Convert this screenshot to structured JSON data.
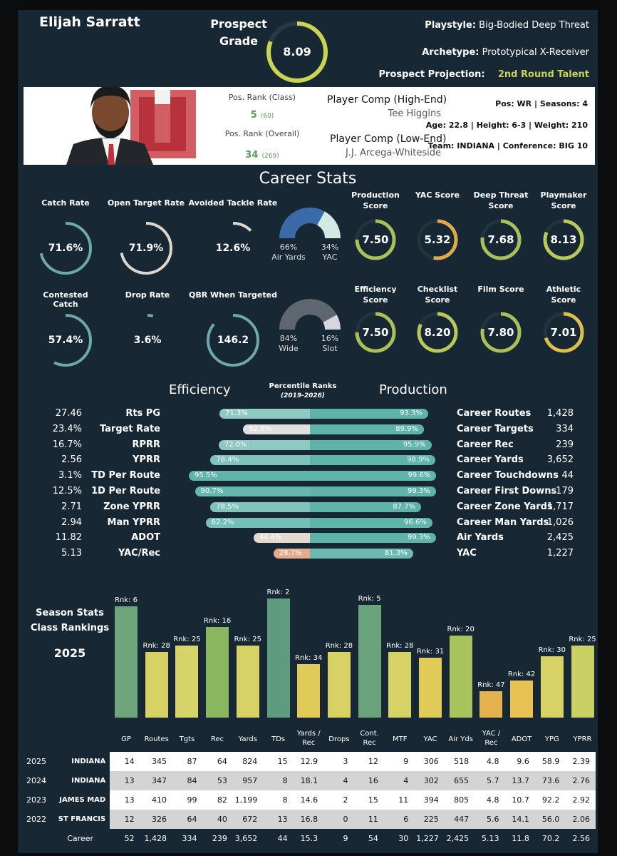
{
  "header": {
    "player_name": "Elijah Sarratt",
    "prospect_grade_label": "Prospect Grade",
    "prospect_grade": "8.09",
    "prospect_grade_value": 8.09,
    "playstyle_label": "Playstyle:",
    "playstyle": "Big-Bodied Deep Threat",
    "archetype_label": "Archetype:",
    "archetype": "Prototypical X-Receiver",
    "projection_label": "Prospect Projection:",
    "projection": "2nd Round Talent"
  },
  "profile": {
    "pos_rank_class_label": "Pos. Rank (Class)",
    "pos_rank_class": "5",
    "pos_rank_class_total": "(60)",
    "pos_rank_overall_label": "Pos. Rank (Overall)",
    "pos_rank_overall": "34",
    "pos_rank_overall_total": "(269)",
    "comp_high_label": "Player Comp (High-End)",
    "comp_high": "Tee Higgins",
    "comp_low_label": "Player Comp (Low-End)",
    "comp_low": "J.J. Arcega-Whiteside",
    "pos_line": "Pos: WR | Seasons: 4",
    "bio_line": "Age: 22.8 | Height: 6-3 | Weight: 210",
    "team_line": "Team: INDIANA | Conference: BIG 10",
    "logo_letter": "IU"
  },
  "career_stats": {
    "title": "Career Stats",
    "rate_stats": [
      {
        "label": "Catch Rate",
        "value": "71.6%",
        "fill": 0.716,
        "color": "#6fa8a8"
      },
      {
        "label": "Open Target Rate",
        "value": "71.9%",
        "fill": 0.719,
        "color": "#dcd6cc"
      },
      {
        "label": "Avoided Tackle Rate",
        "value": "12.6%",
        "fill": 0.126,
        "color": "#dcd6cc"
      },
      {
        "label": "Contested Catch",
        "value": "57.4%",
        "fill": 0.574,
        "color": "#6fa8a8"
      },
      {
        "label": "Drop Rate",
        "value": "3.6%",
        "fill": 0.036,
        "color": "#6fa8a8"
      },
      {
        "label": "QBR When Targeted",
        "value": "146.2",
        "fill": 0.86,
        "color": "#6fa8a8"
      }
    ],
    "air_split": {
      "left_pct": "66%",
      "left_label": "Air Yards",
      "right_pct": "34%",
      "right_label": "YAC",
      "left_value": 66,
      "left_color": "#3b6aa8",
      "right_color": "#cfe9e3"
    },
    "route_split": {
      "left_pct": "84%",
      "left_label": "Wide",
      "right_pct": "16%",
      "right_label": "Slot",
      "left_value": 84,
      "left_color": "#5e6670",
      "right_color": "#d6d6dc"
    },
    "scores": [
      {
        "label": "Production Score",
        "value": "7.50",
        "score": 7.5,
        "color": "#aabf5a"
      },
      {
        "label": "YAC Score",
        "value": "5.32",
        "score": 5.32,
        "color": "#e2a94a"
      },
      {
        "label": "Deep Threat Score",
        "value": "7.68",
        "score": 7.68,
        "color": "#aabf5a"
      },
      {
        "label": "Playmaker Score",
        "value": "8.13",
        "score": 8.13,
        "color": "#b8c95a"
      },
      {
        "label": "Efficiency Score",
        "value": "7.50",
        "score": 7.5,
        "color": "#aabf5a"
      },
      {
        "label": "Checklist Score",
        "value": "8.20",
        "score": 8.2,
        "color": "#b8c95a"
      },
      {
        "label": "Film Score",
        "value": "7.80",
        "score": 7.8,
        "color": "#aabf5a"
      },
      {
        "label": "Athletic Score",
        "value": "7.01",
        "score": 7.01,
        "color": "#dcc04a"
      }
    ]
  },
  "percentiles": {
    "efficiency_title": "Efficiency",
    "production_title": "Production",
    "title": "Percentile Ranks",
    "subtitle": "(2019-2026)",
    "rows": [
      {
        "eff_value": "27.46",
        "eff_label": "Rts PG",
        "eff_pct": "71.3%",
        "eff_pct_value": 71.3,
        "eff_color": "#8ec9c4",
        "prod_pct": "93.3%",
        "prod_pct_value": 93.3,
        "prod_color": "#5fb4aa",
        "prod_label": "Career Routes",
        "prod_value": "1,428"
      },
      {
        "eff_value": "23.4%",
        "eff_label": "Target Rate",
        "eff_pct": "52.6%",
        "eff_pct_value": 52.6,
        "eff_color": "#e0e0e0",
        "prod_pct": "89.9%",
        "prod_pct_value": 89.9,
        "prod_color": "#5fb4aa",
        "prod_label": "Career Targets",
        "prod_value": "334"
      },
      {
        "eff_value": "16.7%",
        "eff_label": "RPRR",
        "eff_pct": "72.0%",
        "eff_pct_value": 72.0,
        "eff_color": "#8ec9c4",
        "prod_pct": "95.9%",
        "prod_pct_value": 95.9,
        "prod_color": "#5fb4aa",
        "prod_label": "Career Rec",
        "prod_value": "239"
      },
      {
        "eff_value": "2.56",
        "eff_label": "YPRR",
        "eff_pct": "78.4%",
        "eff_pct_value": 78.4,
        "eff_color": "#80c2bc",
        "prod_pct": "98.9%",
        "prod_pct_value": 98.9,
        "prod_color": "#5fb4aa",
        "prod_label": "Career Yards",
        "prod_value": "3,652"
      },
      {
        "eff_value": "3.1%",
        "eff_label": "TD Per Route",
        "eff_pct": "95.5%",
        "eff_pct_value": 95.5,
        "eff_color": "#5fb4aa",
        "prod_pct": "99.6%",
        "prod_pct_value": 99.6,
        "prod_color": "#5fb4aa",
        "prod_label": "Career Touchdowns",
        "prod_value": "44"
      },
      {
        "eff_value": "12.5%",
        "eff_label": "1D Per Route",
        "eff_pct": "90.7%",
        "eff_pct_value": 90.7,
        "eff_color": "#66b8ae",
        "prod_pct": "99.3%",
        "prod_pct_value": 99.3,
        "prod_color": "#5fb4aa",
        "prod_label": "Career First Downs",
        "prod_value": "179"
      },
      {
        "eff_value": "2.71",
        "eff_label": "Zone YPRR",
        "eff_pct": "78.5%",
        "eff_pct_value": 78.5,
        "eff_color": "#80c2bc",
        "prod_pct": "87.7%",
        "prod_pct_value": 87.7,
        "prod_color": "#5fb4aa",
        "prod_label": "Career Zone Yards",
        "prod_value": "1,717"
      },
      {
        "eff_value": "2.94",
        "eff_label": "Man YPRR",
        "eff_pct": "82.2%",
        "eff_pct_value": 82.2,
        "eff_color": "#76beb8",
        "prod_pct": "96.6%",
        "prod_pct_value": 96.6,
        "prod_color": "#5fb4aa",
        "prod_label": "Career Man Yards",
        "prod_value": "1,026"
      },
      {
        "eff_value": "11.82",
        "eff_label": "ADOT",
        "eff_pct": "44.4%",
        "eff_pct_value": 44.4,
        "eff_color": "#e6d9cf",
        "prod_pct": "99.3%",
        "prod_pct_value": 99.3,
        "prod_color": "#5fb4aa",
        "prod_label": "Air Yards",
        "prod_value": "2,425"
      },
      {
        "eff_value": "5.13",
        "eff_label": "YAC/Rec",
        "eff_pct": "28.7%",
        "eff_pct_value": 28.7,
        "eff_color": "#e3ab8a",
        "prod_pct": "81.3%",
        "prod_pct_value": 81.3,
        "prod_color": "#6cbab2",
        "prod_label": "YAC",
        "prod_value": "1,227"
      }
    ]
  },
  "season_chart": {
    "title": "Season Stats Class Rankings",
    "title_line1": "Season Stats",
    "title_line2": "Class Rankings",
    "year": "2025",
    "rank_max": 60
  },
  "chart_data": {
    "type": "bar",
    "title": "",
    "categories": [
      "GP",
      "Routes",
      "Tgts",
      "Rec",
      "Yards",
      "TDs",
      "Yards / Rec",
      "Drops",
      "Cont. Rec",
      "MTF",
      "YAC",
      "Air Yds",
      "YAC / Rec",
      "ADOT",
      "YPG",
      "YPRR"
    ],
    "category_lines": [
      [
        "GP"
      ],
      [
        "Routes"
      ],
      [
        "Tgts"
      ],
      [
        "Rec"
      ],
      [
        "Yards"
      ],
      [
        "TDs"
      ],
      [
        "Yards /",
        "Rec"
      ],
      [
        "Drops"
      ],
      [
        "Cont.",
        "Rec"
      ],
      [
        "MTF"
      ],
      [
        "YAC"
      ],
      [
        "Air Yds"
      ],
      [
        "YAC /",
        "Rec"
      ],
      [
        "ADOT"
      ],
      [
        "YPG"
      ],
      [
        "YPRR"
      ]
    ],
    "values": [
      6,
      28,
      25,
      16,
      25,
      2,
      34,
      28,
      5,
      28,
      31,
      20,
      47,
      42,
      30,
      25
    ],
    "labels": [
      "Rnk: 6",
      "Rnk: 28",
      "Rnk: 25",
      "Rnk: 16",
      "Rnk: 25",
      "Rnk: 2",
      "Rnk: 34",
      "Rnk: 28",
      "Rnk: 5",
      "Rnk: 28",
      "Rnk: 31",
      "Rnk: 20",
      "Rnk: 47",
      "Rnk: 42",
      "Rnk: 30",
      "Rnk: 25"
    ],
    "colors": [
      "#6fa57a",
      "#d8d166",
      "#d5d36a",
      "#8ab660",
      "#d8d166",
      "#5f9b7e",
      "#e0cb58",
      "#d8d166",
      "#6aa37c",
      "#d8d166",
      "#e0cb58",
      "#a9c25e",
      "#e4b24e",
      "#e8c155",
      "#d8d166",
      "#c9cf62"
    ]
  },
  "season_table": {
    "rows": [
      {
        "year": "2025",
        "team": "INDIANA",
        "values": [
          "14",
          "345",
          "87",
          "64",
          "824",
          "15",
          "12.9",
          "3",
          "12",
          "9",
          "306",
          "518",
          "4.8",
          "9.6",
          "58.9",
          "2.39"
        ]
      },
      {
        "year": "2024",
        "team": "INDIANA",
        "values": [
          "13",
          "347",
          "84",
          "53",
          "957",
          "8",
          "18.1",
          "4",
          "16",
          "4",
          "302",
          "655",
          "5.7",
          "13.7",
          "73.6",
          "2.76"
        ]
      },
      {
        "year": "2023",
        "team": "JAMES MAD",
        "values": [
          "13",
          "410",
          "99",
          "82",
          "1,199",
          "8",
          "14.6",
          "2",
          "15",
          "11",
          "394",
          "805",
          "4.8",
          "10.7",
          "92.2",
          "2.92"
        ]
      },
      {
        "year": "2022",
        "team": "ST FRANCIS",
        "values": [
          "12",
          "326",
          "64",
          "40",
          "672",
          "13",
          "16.8",
          "0",
          "11",
          "6",
          "225",
          "447",
          "5.6",
          "14.1",
          "56.0",
          "2.06"
        ]
      }
    ],
    "career_label": "Career",
    "career_values": [
      "52",
      "1,428",
      "334",
      "239",
      "3,652",
      "44",
      "15.3",
      "9",
      "54",
      "30",
      "1,227",
      "2,425",
      "5.13",
      "11.8",
      "70.2",
      "2.56"
    ]
  },
  "colors": {
    "background": "#172834",
    "accent_green": "#c8d452",
    "rank_green": "#5a9a56",
    "indiana_red": "#c0323a"
  }
}
